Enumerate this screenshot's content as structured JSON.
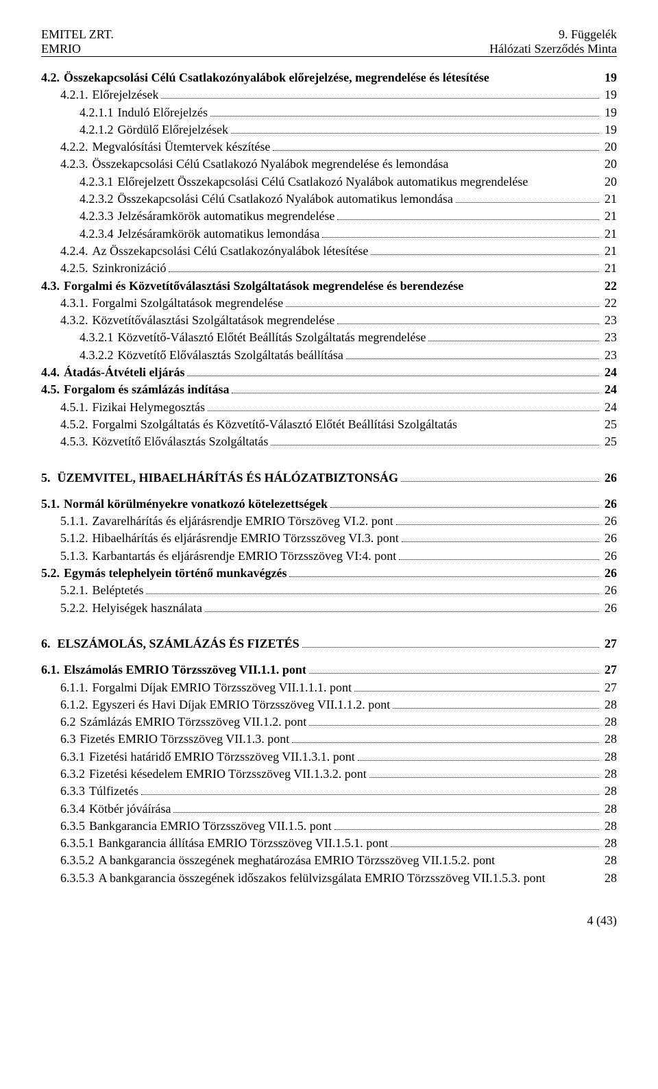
{
  "header": {
    "left": "EMITEL ZRT.\nEMRIO",
    "right": "9. Függelék\nHálózati Szerződés Minta"
  },
  "toc": [
    {
      "num": "4.2.",
      "label": "Összekapcsolási Célú Csatlakozónyalábok előrejelzése, megrendelése és létesítése",
      "page": "19",
      "bold": true,
      "dots": false,
      "indent": 0,
      "wrap": true
    },
    {
      "num": "4.2.1.",
      "label": "Előrejelzések",
      "page": "19",
      "indent": 1
    },
    {
      "num": "4.2.1.1",
      "label": "Induló Előrejelzés",
      "page": "19",
      "indent": 2
    },
    {
      "num": "4.2.1.2",
      "label": "Gördülő Előrejelzések",
      "page": "19",
      "indent": 2
    },
    {
      "num": "4.2.2.",
      "label": "Megvalósítási Ütemtervek készítése",
      "page": "20",
      "indent": 1
    },
    {
      "num": "4.2.3.",
      "label": "Összekapcsolási Célú Csatlakozó Nyalábok megrendelése és lemondása",
      "page": "20",
      "indent": 1,
      "dots": false
    },
    {
      "num": "4.2.3.1",
      "label": "Előrejelzett Összekapcsolási Célú Csatlakozó Nyalábok automatikus megrendelése",
      "page": "20",
      "indent": 2,
      "dots": false,
      "wrap": true
    },
    {
      "num": "4.2.3.2",
      "label": "Összekapcsolási Célú Csatlakozó Nyalábok automatikus lemondása",
      "page": "21",
      "indent": 2
    },
    {
      "num": "4.2.3.3",
      "label": "Jelzésáramkörök automatikus megrendelése",
      "page": "21",
      "indent": 2
    },
    {
      "num": "4.2.3.4",
      "label": "Jelzésáramkörök automatikus lemondása",
      "page": "21",
      "indent": 2
    },
    {
      "num": "4.2.4.",
      "label": "Az Összekapcsolási Célú Csatlakozónyalábok létesítése",
      "page": "21",
      "indent": 1
    },
    {
      "num": "4.2.5.",
      "label": "Szinkronizáció",
      "page": "21",
      "indent": 1
    },
    {
      "num": "4.3.",
      "label": "Forgalmi és Közvetítőválasztási Szolgáltatások megrendelése és berendezése",
      "page": "22",
      "bold": true,
      "dots": false,
      "indent": 0,
      "wrap": true
    },
    {
      "num": "4.3.1.",
      "label": "Forgalmi Szolgáltatások megrendelése",
      "page": "22",
      "indent": 1
    },
    {
      "num": "4.3.2.",
      "label": "Közvetítőválasztási Szolgáltatások megrendelése",
      "page": "23",
      "indent": 1
    },
    {
      "num": "4.3.2.1",
      "label": "Közvetítő-Választó Előtét Beállítás Szolgáltatás megrendelése",
      "page": "23",
      "indent": 2
    },
    {
      "num": "4.3.2.2",
      "label": "Közvetítő Előválasztás Szolgáltatás beállítása",
      "page": "23",
      "indent": 2
    },
    {
      "num": "4.4.",
      "label": "Átadás-Átvételi eljárás",
      "page": "24",
      "bold": true,
      "indent": 0
    },
    {
      "num": "4.5.",
      "label": "Forgalom és számlázás indítása",
      "page": "24",
      "bold": true,
      "indent": 0
    },
    {
      "num": "4.5.1.",
      "label": "Fizikai Helymegosztás",
      "page": "24",
      "indent": 1
    },
    {
      "num": "4.5.2.",
      "label": "Forgalmi Szolgáltatás és Közvetítő-Választó Előtét Beállítási Szolgáltatás",
      "page": "25",
      "indent": 1,
      "dots": false
    },
    {
      "num": "4.5.3.",
      "label": "Közvetítő Előválasztás Szolgáltatás",
      "page": "25",
      "indent": 1
    }
  ],
  "section5": {
    "num": "5.",
    "label": "ÜZEMVITEL,  HIBAELHÁRÍTÁS  ÉS  HÁLÓZATBIZTONSÁG",
    "page": "26"
  },
  "toc5": [
    {
      "num": "5.1.",
      "label": "Normál körülményekre vonatkozó kötelezettségek",
      "page": "26",
      "bold": true,
      "indent": 0
    },
    {
      "num": "5.1.1.",
      "label": "Zavarelhárítás és eljárásrendje EMRIO Törszöveg VI.2. pont",
      "page": "26",
      "indent": 1
    },
    {
      "num": "5.1.2.",
      "label": "Hibaelhárítás és eljárásrendje EMRIO Törzsszöveg VI.3. pont",
      "page": "26",
      "indent": 1
    },
    {
      "num": "5.1.3.",
      "label": "Karbantartás és eljárásrendje EMRIO Törzsszöveg VI:4. pont",
      "page": "26",
      "indent": 1
    },
    {
      "num": "5.2.",
      "label": "Egymás telephelyein történő munkavégzés",
      "page": "26",
      "bold": true,
      "indent": 0
    },
    {
      "num": "5.2.1.",
      "label": "Beléptetés",
      "page": "26",
      "indent": 1
    },
    {
      "num": "5.2.2.",
      "label": "Helyiségek használata",
      "page": "26",
      "indent": 1
    }
  ],
  "section6": {
    "num": "6.",
    "label": "ELSZÁMOLÁS,  SZÁMLÁZÁS  ÉS  FIZETÉS",
    "page": "27"
  },
  "toc6": [
    {
      "num": "6.1.",
      "label": "Elszámolás EMRIO Törzsszöveg VII.1.1. pont",
      "page": "27",
      "bold": true,
      "indent": 0
    },
    {
      "num": "6.1.1.",
      "label": "Forgalmi Díjak EMRIO Törzsszöveg VII.1.1.1. pont",
      "page": "27",
      "indent": 1
    },
    {
      "num": "6.1.2.",
      "label": "Egyszeri és Havi Díjak EMRIO Törzsszöveg VII.1.1.2. pont",
      "page": "28",
      "indent": 1
    },
    {
      "num": "6.2",
      "label": "Számlázás EMRIO Törzsszöveg VII.1.2. pont",
      "page": "28",
      "indent": 1
    },
    {
      "num": "6.3",
      "label": "Fizetés EMRIO Törzsszöveg VII.1.3. pont",
      "page": "28",
      "indent": 1
    },
    {
      "num": "6.3.1",
      "label": "Fizetési határidő EMRIO Törzsszöveg VII.1.3.1. pont",
      "page": "28",
      "indent": 1
    },
    {
      "num": "6.3.2",
      "label": "Fizetési késedelem EMRIO Törzsszöveg VII.1.3.2. pont",
      "page": "28",
      "indent": 1
    },
    {
      "num": "6.3.3",
      "label": "Túlfizetés",
      "page": "28",
      "indent": 1
    },
    {
      "num": "6.3.4",
      "label": "Kötbér jóváírása",
      "page": "28",
      "indent": 1
    },
    {
      "num": "6.3.5",
      "label": "Bankgarancia EMRIO Törzsszöveg VII.1.5. pont",
      "page": "28",
      "indent": 1
    },
    {
      "num": "6.3.5.1",
      "label": "Bankgarancia állítása EMRIO Törzsszöveg VII.1.5.1. pont",
      "page": "28",
      "indent": 1
    },
    {
      "num": "6.3.5.2",
      "label": "A bankgarancia összegének meghatározása EMRIO Törzsszöveg VII.1.5.2. pont",
      "page": "28",
      "indent": 1,
      "dots": false,
      "wrap": true
    },
    {
      "num": "6.3.5.3",
      "label": "A bankgarancia összegének időszakos felülvizsgálata EMRIO Törzsszöveg VII.1.5.3. pont",
      "page": "28",
      "indent": 1,
      "dots": false,
      "wrap": true
    }
  ],
  "footer": "4 (43)"
}
